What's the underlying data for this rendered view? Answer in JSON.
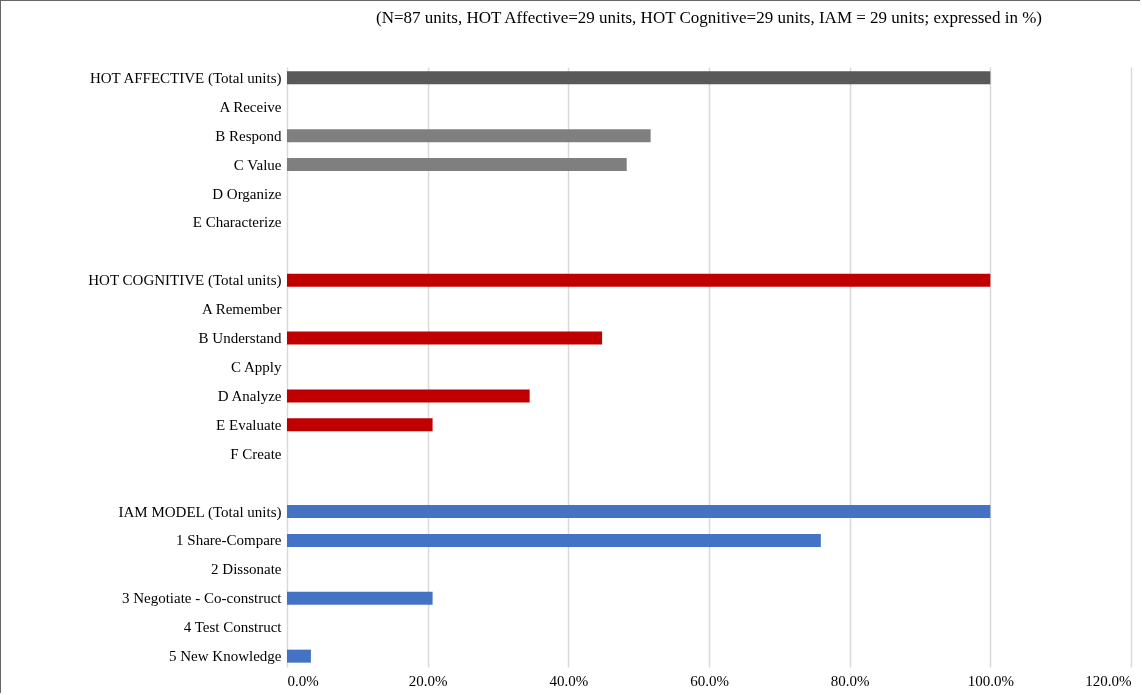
{
  "chart_data": {
    "type": "bar",
    "orientation": "horizontal",
    "title": "(N=87 units, HOT Affective=29 units, HOT Cognitive=29 units, IAM = 29 units; expressed in %)",
    "categories": [
      "HOT AFFECTIVE (Total units)",
      "A Receive",
      "B Respond",
      "C Value",
      "D Organize",
      "E Characterize",
      null,
      "HOT COGNITIVE (Total units)",
      "A Remember",
      "B Understand",
      "C Apply",
      "D Analyze",
      "E Evaluate",
      "F Create",
      null,
      "IAM MODEL (Total units)",
      "1 Share-Compare",
      "2 Dissonate",
      "3 Negotiate - Co-construct",
      "4 Test Construct",
      "5 New Knowledge"
    ],
    "values": [
      100,
      0,
      51.7,
      48.3,
      0,
      0,
      null,
      100,
      0,
      44.8,
      0,
      34.5,
      20.7,
      0,
      null,
      100,
      75.9,
      0,
      20.7,
      0,
      3.4
    ],
    "colors": [
      "#595959",
      "#7f7f7f",
      "#7f7f7f",
      "#7f7f7f",
      "#7f7f7f",
      "#7f7f7f",
      "#7f7f7f",
      "#c00000",
      "#c00000",
      "#c00000",
      "#c00000",
      "#c00000",
      "#c00000",
      "#c00000",
      "#4472c4",
      "#4472c4",
      "#4472c4",
      "#4472c4",
      "#4472c4",
      "#4472c4",
      "#4472c4"
    ],
    "xlim": [
      0,
      120
    ],
    "xticks": [
      {
        "value": 0,
        "label": "0.0%"
      },
      {
        "value": 20,
        "label": "20.0%"
      },
      {
        "value": 40,
        "label": "40.0%"
      },
      {
        "value": 60,
        "label": "60.0%"
      },
      {
        "value": 80,
        "label": "80.0%"
      },
      {
        "value": 100,
        "label": "100.0%"
      },
      {
        "value": 120,
        "label": "120.0%"
      }
    ],
    "grid": "x"
  }
}
